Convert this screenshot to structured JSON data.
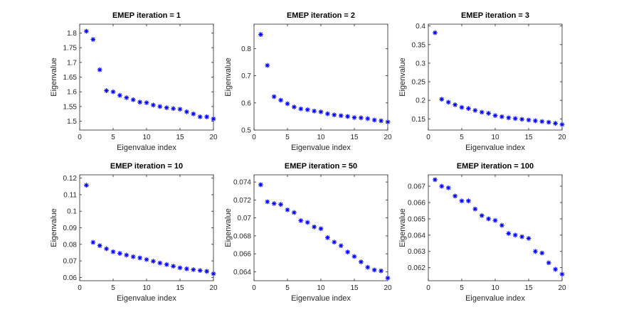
{
  "chart_data": [
    {
      "type": "scatter",
      "title": "EMEP iteration = 1",
      "xlabel": "Eigenvalue index",
      "ylabel": "Eigenvalue",
      "xlim": [
        0,
        20
      ],
      "ylim": [
        1.47,
        1.83
      ],
      "xticks": [
        "0",
        "5",
        "10",
        "15",
        "20"
      ],
      "yticks": [
        "1.5",
        "1.55",
        "1.6",
        "1.65",
        "1.7",
        "1.75",
        "1.8"
      ],
      "marker": "*",
      "color": "#0000ff",
      "x": [
        1,
        2,
        3,
        4,
        5,
        6,
        7,
        8,
        9,
        10,
        11,
        12,
        13,
        14,
        15,
        16,
        17,
        18,
        19,
        20
      ],
      "y": [
        1.806,
        1.778,
        1.675,
        1.604,
        1.6,
        1.588,
        1.58,
        1.573,
        1.565,
        1.563,
        1.555,
        1.55,
        1.546,
        1.543,
        1.541,
        1.532,
        1.525,
        1.515,
        1.515,
        1.508
      ]
    },
    {
      "type": "scatter",
      "title": "EMEP iteration = 2",
      "xlabel": "Eigenvalue index",
      "ylabel": "Eigenvalue",
      "xlim": [
        0,
        20
      ],
      "ylim": [
        0.5,
        0.89
      ],
      "xticks": [
        "0",
        "5",
        "10",
        "15",
        "20"
      ],
      "yticks": [
        "0.5",
        "0.6",
        "0.7",
        "0.8"
      ],
      "marker": "*",
      "color": "#0000ff",
      "x": [
        1,
        2,
        3,
        4,
        5,
        6,
        7,
        8,
        9,
        10,
        11,
        12,
        13,
        14,
        15,
        16,
        17,
        18,
        19,
        20
      ],
      "y": [
        0.852,
        0.738,
        0.623,
        0.61,
        0.597,
        0.585,
        0.578,
        0.575,
        0.57,
        0.567,
        0.56,
        0.556,
        0.553,
        0.55,
        0.546,
        0.545,
        0.542,
        0.537,
        0.534,
        0.53
      ]
    },
    {
      "type": "scatter",
      "title": "EMEP iteration = 3",
      "xlabel": "Eigenvalue index",
      "ylabel": "Eigenvalue",
      "xlim": [
        0,
        20
      ],
      "ylim": [
        0.12,
        0.405
      ],
      "xticks": [
        "0",
        "5",
        "10",
        "15",
        "20"
      ],
      "yticks": [
        "0.15",
        "0.2",
        "0.25",
        "0.3",
        "0.35",
        "0.4"
      ],
      "marker": "*",
      "color": "#0000ff",
      "x": [
        1,
        2,
        3,
        4,
        5,
        6,
        7,
        8,
        9,
        10,
        11,
        12,
        13,
        14,
        15,
        16,
        17,
        18,
        19,
        20
      ],
      "y": [
        0.382,
        0.203,
        0.195,
        0.188,
        0.181,
        0.178,
        0.173,
        0.168,
        0.165,
        0.159,
        0.156,
        0.153,
        0.151,
        0.149,
        0.147,
        0.145,
        0.143,
        0.141,
        0.138,
        0.135
      ]
    },
    {
      "type": "scatter",
      "title": "EMEP iteration = 10",
      "xlabel": "Eigenvalue index",
      "ylabel": "Eigenvalue",
      "xlim": [
        0,
        20
      ],
      "ylim": [
        0.058,
        0.122
      ],
      "xticks": [
        "0",
        "5",
        "10",
        "15",
        "20"
      ],
      "yticks": [
        "0.06",
        "0.07",
        "0.08",
        "0.09",
        "0.1",
        "0.11",
        "0.12"
      ],
      "marker": "*",
      "color": "#0000ff",
      "x": [
        1,
        2,
        3,
        4,
        5,
        6,
        7,
        8,
        9,
        10,
        11,
        12,
        13,
        14,
        15,
        16,
        17,
        18,
        19,
        20
      ],
      "y": [
        0.1157,
        0.0812,
        0.0792,
        0.0773,
        0.0755,
        0.0745,
        0.0735,
        0.0725,
        0.0718,
        0.0708,
        0.0698,
        0.0687,
        0.0678,
        0.0668,
        0.0658,
        0.0652,
        0.0647,
        0.0642,
        0.0637,
        0.0622
      ]
    },
    {
      "type": "scatter",
      "title": "EMEP iteration = 50",
      "xlabel": "Eigenvalue index",
      "ylabel": "Eigenvalue",
      "xlim": [
        0,
        20
      ],
      "ylim": [
        0.063,
        0.0748
      ],
      "xticks": [
        "0",
        "5",
        "10",
        "15",
        "20"
      ],
      "yticks": [
        "0.064",
        "0.066",
        "0.068",
        "0.07",
        "0.072",
        "0.074"
      ],
      "marker": "*",
      "color": "#0000ff",
      "x": [
        1,
        2,
        3,
        4,
        5,
        6,
        7,
        8,
        9,
        10,
        11,
        12,
        13,
        14,
        15,
        16,
        17,
        18,
        19,
        20
      ],
      "y": [
        0.0737,
        0.0718,
        0.0716,
        0.0715,
        0.0709,
        0.0706,
        0.0697,
        0.0695,
        0.069,
        0.0688,
        0.0678,
        0.0673,
        0.0669,
        0.0662,
        0.0657,
        0.0651,
        0.0645,
        0.0642,
        0.0641,
        0.0633
      ]
    },
    {
      "type": "scatter",
      "title": "EMEP iteration = 100",
      "xlabel": "Eigenvalue index",
      "ylabel": "Eigenvalue",
      "xlim": [
        0,
        20
      ],
      "ylim": [
        0.0612,
        0.0677
      ],
      "xticks": [
        "0",
        "5",
        "10",
        "15",
        "20"
      ],
      "yticks": [
        "0.062",
        "0.063",
        "0.064",
        "0.065",
        "0.066",
        "0.067"
      ],
      "marker": "*",
      "color": "#0000ff",
      "x": [
        1,
        2,
        3,
        4,
        5,
        6,
        7,
        8,
        9,
        10,
        11,
        12,
        13,
        14,
        15,
        16,
        17,
        18,
        19,
        20
      ],
      "y": [
        0.0674,
        0.067,
        0.0669,
        0.0664,
        0.0661,
        0.0661,
        0.0656,
        0.0652,
        0.065,
        0.0649,
        0.0646,
        0.0641,
        0.064,
        0.0639,
        0.0638,
        0.063,
        0.0629,
        0.0623,
        0.0619,
        0.0616
      ]
    }
  ]
}
